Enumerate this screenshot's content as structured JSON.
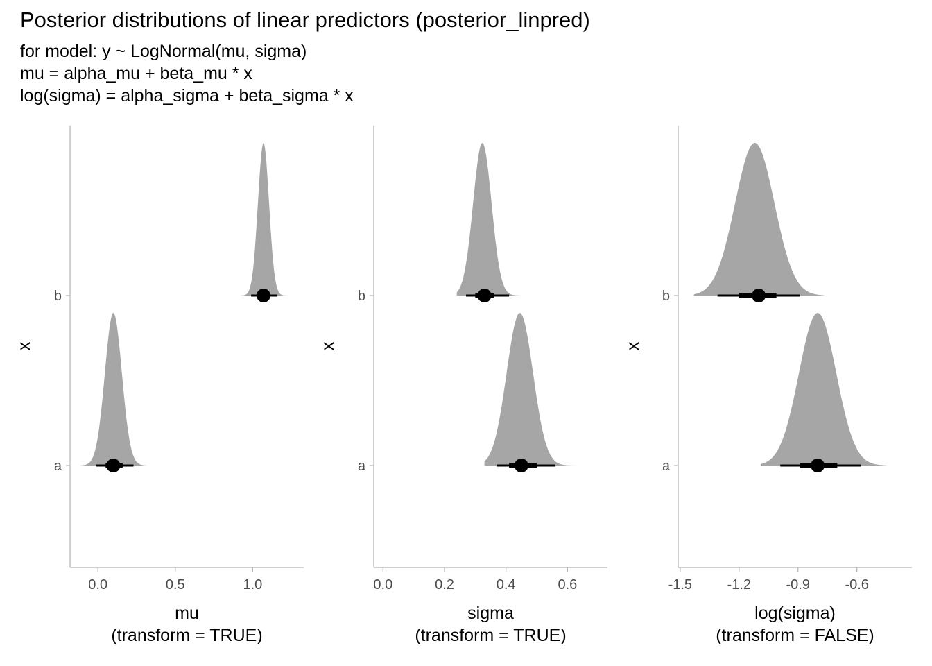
{
  "title": "Posterior distributions of linear predictors (posterior_linpred)",
  "subtitle_lines": [
    "for model: y ~ LogNormal(mu, sigma)",
    "mu = alpha_mu + beta_mu * x",
    "log(sigma) = alpha_sigma + beta_sigma * x"
  ],
  "colors": {
    "density_fill": "#a6a6a6",
    "interval": "#000000",
    "axis_line": "#b3b3b3"
  },
  "chart_data": [
    {
      "type": "halfeye",
      "xlabel": [
        "mu",
        "(transform = TRUE)"
      ],
      "ylabel": "x",
      "categories": [
        "a",
        "b"
      ],
      "xlim": [
        -0.18,
        1.33
      ],
      "xticks": [
        0.0,
        0.5,
        1.0
      ],
      "xtick_labels": [
        "0.0",
        "0.5",
        "1.0"
      ],
      "series": [
        {
          "category": "a",
          "median": 0.1,
          "interval_66": [
            0.05,
            0.16
          ],
          "interval_95": [
            -0.01,
            0.23
          ],
          "density_range": [
            -0.11,
            0.31
          ],
          "density_mode": 0.1,
          "density_sd": 0.055
        },
        {
          "category": "b",
          "median": 1.07,
          "interval_66": [
            1.04,
            1.1
          ],
          "interval_95": [
            0.99,
            1.16
          ],
          "density_range": [
            0.89,
            1.24
          ],
          "density_mode": 1.07,
          "density_sd": 0.036
        }
      ]
    },
    {
      "type": "halfeye",
      "xlabel": [
        "sigma",
        "(transform = TRUE)"
      ],
      "ylabel": "x",
      "categories": [
        "a",
        "b"
      ],
      "xlim": [
        -0.03,
        0.73
      ],
      "xticks": [
        0.0,
        0.2,
        0.4,
        0.6
      ],
      "xtick_labels": [
        "0.0",
        "0.2",
        "0.4",
        "0.6"
      ],
      "series": [
        {
          "category": "a",
          "median": 0.45,
          "interval_66": [
            0.41,
            0.5
          ],
          "interval_95": [
            0.37,
            0.56
          ],
          "density_range": [
            0.33,
            0.63
          ],
          "density_mode": 0.445,
          "density_sd": 0.043
        },
        {
          "category": "b",
          "median": 0.33,
          "interval_66": [
            0.3,
            0.36
          ],
          "interval_95": [
            0.27,
            0.41
          ],
          "density_range": [
            0.24,
            0.47
          ],
          "density_mode": 0.323,
          "density_sd": 0.03
        }
      ]
    },
    {
      "type": "halfeye",
      "xlabel": [
        "log(sigma)",
        "(transform = FALSE)"
      ],
      "ylabel": "x",
      "categories": [
        "a",
        "b"
      ],
      "xlim": [
        -1.51,
        -0.32
      ],
      "xticks": [
        -1.5,
        -1.2,
        -0.9,
        -0.6
      ],
      "xtick_labels": [
        "-1.5",
        "-1.2",
        "-0.9",
        "-0.6"
      ],
      "series": [
        {
          "category": "a",
          "median": -0.8,
          "interval_66": [
            -0.89,
            -0.7
          ],
          "interval_95": [
            -0.99,
            -0.58
          ],
          "density_range": [
            -1.09,
            -0.45
          ],
          "density_mode": -0.8,
          "density_sd": 0.095
        },
        {
          "category": "b",
          "median": -1.1,
          "interval_66": [
            -1.2,
            -1.01
          ],
          "interval_95": [
            -1.31,
            -0.89
          ],
          "density_range": [
            -1.43,
            -0.77
          ],
          "density_mode": -1.12,
          "density_sd": 0.1
        }
      ]
    }
  ]
}
